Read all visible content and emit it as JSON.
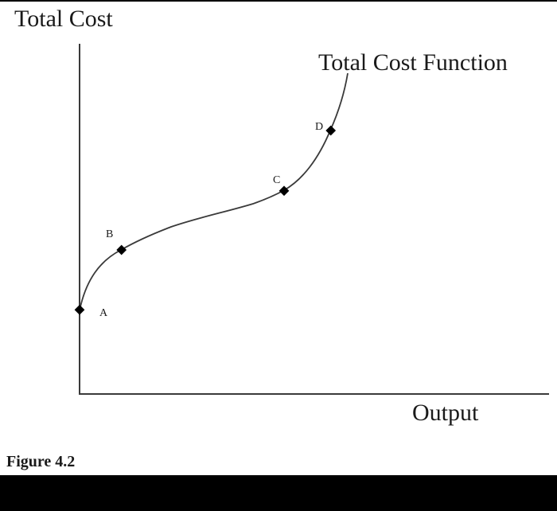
{
  "diagram": {
    "y_axis_title": "Total Cost",
    "x_axis_title": "Output",
    "curve_title": "Total Cost Function",
    "points": [
      {
        "id": "A",
        "label": "A"
      },
      {
        "id": "B",
        "label": "B"
      },
      {
        "id": "C",
        "label": "C"
      },
      {
        "id": "D",
        "label": "D"
      }
    ],
    "colors": {
      "curve": "#3a3a3a",
      "axes": "#3a3a3a",
      "points": "#000000",
      "background": "#ffffff",
      "footer_bar": "#000000"
    }
  },
  "caption": "Figure 4.2"
}
